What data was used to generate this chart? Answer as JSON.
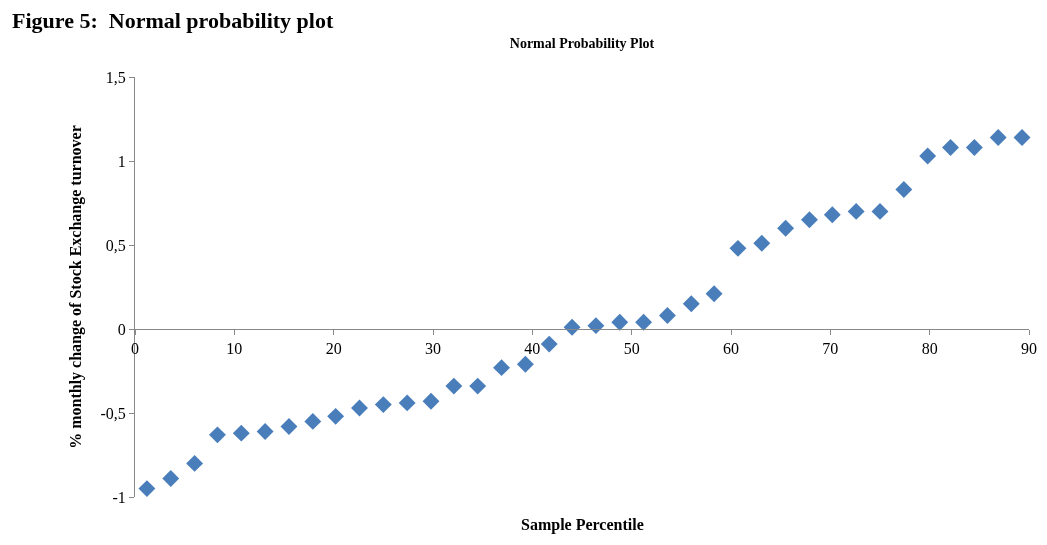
{
  "chart_data": {
    "type": "scatter",
    "title": "Normal Probability Plot",
    "xlabel": "Sample Percentile",
    "ylabel": "% monthly change of Stock Exchange turnover",
    "annotations": [
      "Figure 5:  Normal probability plot"
    ],
    "x": [
      1.2,
      3.6,
      6.0,
      8.3,
      10.7,
      13.1,
      15.5,
      17.9,
      20.2,
      22.6,
      25.0,
      27.4,
      29.8,
      32.1,
      34.5,
      36.9,
      39.3,
      41.7,
      44.0,
      46.4,
      48.8,
      51.2,
      53.6,
      56.0,
      58.3,
      60.7,
      63.1,
      65.5,
      67.9,
      70.2,
      72.6,
      75.0,
      77.4,
      79.8,
      82.1,
      84.5,
      86.9,
      89.3
    ],
    "series": [
      {
        "color": "#4a7ebb",
        "values": [
          -0.95,
          -0.89,
          -0.8,
          -0.63,
          -0.62,
          -0.61,
          -0.58,
          -0.55,
          -0.52,
          -0.47,
          -0.45,
          -0.44,
          -0.43,
          -0.34,
          -0.34,
          -0.23,
          -0.21,
          -0.09,
          0.01,
          0.02,
          0.04,
          0.04,
          0.08,
          0.15,
          0.21,
          0.48,
          0.51,
          0.6,
          0.65,
          0.68,
          0.7,
          0.7,
          0.83,
          1.03,
          1.08,
          1.08,
          1.14,
          1.14
        ]
      }
    ],
    "xlim": [
      0,
      90
    ],
    "xticks": [
      0,
      10,
      20,
      30,
      40,
      50,
      60,
      70,
      80,
      90
    ],
    "ylim": [
      -1,
      1.5
    ],
    "yticks": [
      {
        "value": -1,
        "label": "-1"
      },
      {
        "value": -0.5,
        "label": "-0,5"
      },
      {
        "value": 0,
        "label": "0"
      },
      {
        "value": 0.5,
        "label": "0,5"
      },
      {
        "value": 1,
        "label": "1"
      },
      {
        "value": 1.5,
        "label": "1,5"
      }
    ],
    "marker": "diamond",
    "grid": false
  }
}
